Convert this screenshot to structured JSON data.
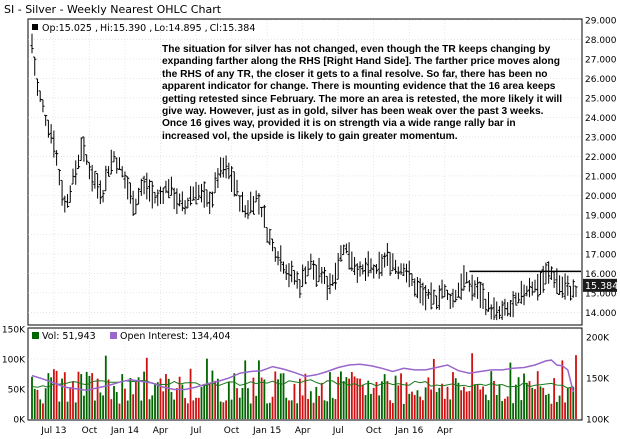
{
  "chart_data": [
    {
      "type": "ohlc",
      "title": "SI - Silver - Weekly Nearest OHLC Chart",
      "quote": {
        "open_label": "Op:15.025",
        "high_label": "Hi:15.390",
        "low_label": "Lo:14.895",
        "close_label": "Cl:15.384"
      },
      "last_price": "15.384",
      "y_ticks": [
        "14.000",
        "15.000",
        "16.000",
        "17.000",
        "18.000",
        "19.000",
        "20.000",
        "21.000",
        "22.000",
        "23.000",
        "24.000",
        "25.000",
        "26.000",
        "27.000",
        "28.000",
        "29.000"
      ],
      "ylim": [
        13.4,
        29
      ],
      "resistance_level": 16.1,
      "annotation": "The situation for silver has not changed, even though the TR keeps changing by expanding farther along the RHS [Right Hand Side].  The farther price moves along the RHS of any TR, the closer it gets to a final resolve.  So far, there has been no apparent indicator for change.  There is mounting evidence that the 16 area keeps getting retested since February.  The more an area is retested, the more likely it will give way.  However, just as in gold, silver has been weak over the past 3 weeks.  Once 16 gives way, provided it is on strength via a wide range rally bar in increased vol, the upside is likely to gain greater momentum.",
      "trend_path": [
        [
          0,
          27.8
        ],
        [
          2,
          25.5
        ],
        [
          5,
          24.0
        ],
        [
          8,
          22.8
        ],
        [
          10,
          21.0
        ],
        [
          12,
          19.5
        ],
        [
          14,
          20.3
        ],
        [
          16,
          21.2
        ],
        [
          18,
          22.5
        ],
        [
          20,
          21.8
        ],
        [
          22,
          21.0
        ],
        [
          24,
          20.5
        ],
        [
          26,
          20.2
        ],
        [
          28,
          21.4
        ],
        [
          30,
          22.0
        ],
        [
          32,
          21.5
        ],
        [
          34,
          20.8
        ],
        [
          36,
          20.0
        ],
        [
          38,
          19.6
        ],
        [
          40,
          20.4
        ],
        [
          42,
          20.5
        ],
        [
          44,
          20.0
        ],
        [
          46,
          19.8
        ],
        [
          48,
          20.2
        ],
        [
          50,
          20.5
        ],
        [
          52,
          20.0
        ],
        [
          54,
          19.6
        ],
        [
          56,
          19.4
        ],
        [
          58,
          20.0
        ],
        [
          60,
          20.3
        ],
        [
          62,
          20.0
        ],
        [
          64,
          19.7
        ],
        [
          66,
          19.9
        ],
        [
          68,
          21.0
        ],
        [
          70,
          21.4
        ],
        [
          72,
          21.2
        ],
        [
          74,
          20.6
        ],
        [
          76,
          19.8
        ],
        [
          78,
          19.2
        ],
        [
          80,
          19.6
        ],
        [
          82,
          19.9
        ],
        [
          84,
          19.3
        ],
        [
          86,
          18.2
        ],
        [
          88,
          17.4
        ],
        [
          90,
          17.0
        ],
        [
          92,
          16.5
        ],
        [
          94,
          16.0
        ],
        [
          96,
          15.8
        ],
        [
          98,
          15.4
        ],
        [
          100,
          16.1
        ],
        [
          102,
          16.5
        ],
        [
          104,
          15.9
        ],
        [
          106,
          16.0
        ],
        [
          108,
          15.4
        ],
        [
          110,
          15.7
        ],
        [
          112,
          16.5
        ],
        [
          114,
          17.4
        ],
        [
          116,
          17.0
        ],
        [
          118,
          16.5
        ],
        [
          120,
          16.0
        ],
        [
          122,
          16.2
        ],
        [
          124,
          16.3
        ],
        [
          126,
          16.0
        ],
        [
          128,
          16.5
        ],
        [
          130,
          16.8
        ],
        [
          132,
          16.6
        ],
        [
          134,
          16.2
        ],
        [
          136,
          16.4
        ],
        [
          138,
          15.8
        ],
        [
          140,
          15.4
        ],
        [
          142,
          15.0
        ],
        [
          144,
          14.8
        ],
        [
          146,
          14.6
        ],
        [
          148,
          14.7
        ],
        [
          150,
          15.2
        ],
        [
          152,
          14.8
        ],
        [
          154,
          14.7
        ],
        [
          156,
          15.2
        ],
        [
          158,
          15.7
        ],
        [
          160,
          15.4
        ],
        [
          162,
          15.2
        ],
        [
          164,
          15.0
        ],
        [
          166,
          14.5
        ],
        [
          168,
          14.2
        ],
        [
          170,
          13.9
        ],
        [
          172,
          14.0
        ],
        [
          174,
          14.1
        ],
        [
          176,
          14.3
        ],
        [
          178,
          14.6
        ],
        [
          180,
          15.0
        ],
        [
          182,
          15.4
        ],
        [
          184,
          15.3
        ],
        [
          186,
          15.5
        ],
        [
          188,
          15.9
        ],
        [
          190,
          16.0
        ],
        [
          192,
          15.6
        ],
        [
          194,
          15.3
        ],
        [
          196,
          15.2
        ],
        [
          198,
          15.1
        ]
      ],
      "bar_count": 200
    },
    {
      "type": "volume",
      "vol_label": "Vol: 51,943",
      "oi_label": "Open Interest: 134,404",
      "y_ticks_left": [
        "0K",
        "50K",
        "100K",
        "150K"
      ],
      "y_ticks_right": [
        "100K",
        "150K",
        "200K"
      ],
      "vol_ylim": [
        0,
        150000
      ],
      "oi_ylim": [
        100000,
        210000
      ],
      "vol_profile": [
        [
          0,
          55000
        ],
        [
          20,
          60000
        ],
        [
          40,
          62000
        ],
        [
          60,
          58000
        ],
        [
          80,
          60000
        ],
        [
          100,
          62000
        ],
        [
          120,
          58000
        ],
        [
          140,
          60000
        ],
        [
          160,
          55000
        ],
        [
          180,
          58000
        ],
        [
          198,
          55000
        ]
      ],
      "oi_path": [
        [
          0,
          153000
        ],
        [
          4,
          149000
        ],
        [
          8,
          144000
        ],
        [
          12,
          139000
        ],
        [
          16,
          137000
        ],
        [
          20,
          135000
        ],
        [
          24,
          138000
        ],
        [
          28,
          141000
        ],
        [
          32,
          145000
        ],
        [
          36,
          148000
        ],
        [
          40,
          146000
        ],
        [
          44,
          144000
        ],
        [
          48,
          139000
        ],
        [
          52,
          136000
        ],
        [
          56,
          136000
        ],
        [
          60,
          139000
        ],
        [
          64,
          143000
        ],
        [
          68,
          146000
        ],
        [
          72,
          150000
        ],
        [
          76,
          156000
        ],
        [
          80,
          158000
        ],
        [
          84,
          159000
        ],
        [
          88,
          164000
        ],
        [
          92,
          161000
        ],
        [
          96,
          157000
        ],
        [
          100,
          152000
        ],
        [
          104,
          154000
        ],
        [
          108,
          158000
        ],
        [
          112,
          163000
        ],
        [
          116,
          166000
        ],
        [
          120,
          167000
        ],
        [
          124,
          165000
        ],
        [
          128,
          162000
        ],
        [
          132,
          158000
        ],
        [
          136,
          162000
        ],
        [
          140,
          160000
        ],
        [
          144,
          160000
        ],
        [
          148,
          163000
        ],
        [
          152,
          166000
        ],
        [
          156,
          159000
        ],
        [
          160,
          156000
        ],
        [
          164,
          158000
        ],
        [
          168,
          160000
        ],
        [
          172,
          160000
        ],
        [
          176,
          162000
        ],
        [
          180,
          163000
        ],
        [
          184,
          166000
        ],
        [
          188,
          171000
        ],
        [
          190,
          172000
        ],
        [
          192,
          166000
        ],
        [
          194,
          165000
        ],
        [
          196,
          160000
        ],
        [
          198,
          133000
        ]
      ]
    }
  ],
  "x_axis": {
    "labels": [
      "Jul 13",
      "Oct",
      "Jan 14",
      "Apr",
      "Jul",
      "Oct",
      "Jan 15",
      "Apr",
      "Jul",
      "Oct",
      "Jan 16",
      "Apr"
    ],
    "positions": [
      8,
      21,
      34,
      47,
      60,
      73,
      86,
      99,
      112,
      125,
      138,
      151
    ]
  },
  "colors": {
    "up": "#006400",
    "down": "#d01010",
    "open_interest": "#9966cc",
    "price_box": "#1a1a1a",
    "grid": "#d8d8d8"
  }
}
